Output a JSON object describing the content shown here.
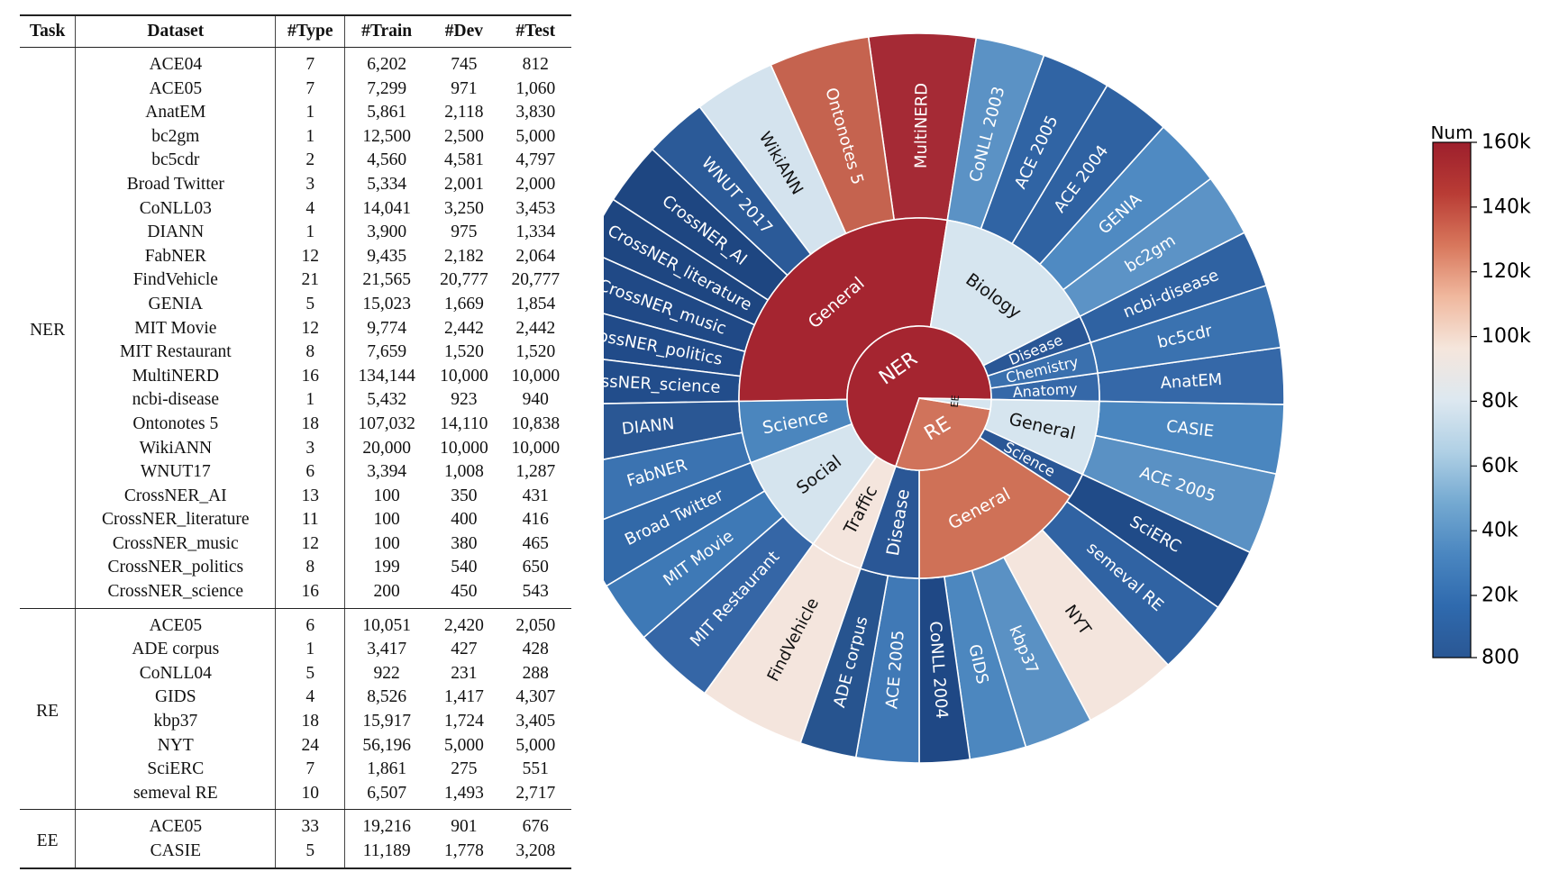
{
  "table": {
    "headers": [
      "Task",
      "Dataset",
      "#Type",
      "#Train",
      "#Dev",
      "#Test"
    ],
    "groups": [
      {
        "task": "NER",
        "rows": [
          [
            "ACE04",
            "7",
            "6,202",
            "745",
            "812"
          ],
          [
            "ACE05",
            "7",
            "7,299",
            "971",
            "1,060"
          ],
          [
            "AnatEM",
            "1",
            "5,861",
            "2,118",
            "3,830"
          ],
          [
            "bc2gm",
            "1",
            "12,500",
            "2,500",
            "5,000"
          ],
          [
            "bc5cdr",
            "2",
            "4,560",
            "4,581",
            "4,797"
          ],
          [
            "Broad Twitter",
            "3",
            "5,334",
            "2,001",
            "2,000"
          ],
          [
            "CoNLL03",
            "4",
            "14,041",
            "3,250",
            "3,453"
          ],
          [
            "DIANN",
            "1",
            "3,900",
            "975",
            "1,334"
          ],
          [
            "FabNER",
            "12",
            "9,435",
            "2,182",
            "2,064"
          ],
          [
            "FindVehicle",
            "21",
            "21,565",
            "20,777",
            "20,777"
          ],
          [
            "GENIA",
            "5",
            "15,023",
            "1,669",
            "1,854"
          ],
          [
            "MIT Movie",
            "12",
            "9,774",
            "2,442",
            "2,442"
          ],
          [
            "MIT Restaurant",
            "8",
            "7,659",
            "1,520",
            "1,520"
          ],
          [
            "MultiNERD",
            "16",
            "134,144",
            "10,000",
            "10,000"
          ],
          [
            "ncbi-disease",
            "1",
            "5,432",
            "923",
            "940"
          ],
          [
            "Ontonotes 5",
            "18",
            "107,032",
            "14,110",
            "10,838"
          ],
          [
            "WikiANN",
            "3",
            "20,000",
            "10,000",
            "10,000"
          ],
          [
            "WNUT17",
            "6",
            "3,394",
            "1,008",
            "1,287"
          ],
          [
            "CrossNER_AI",
            "13",
            "100",
            "350",
            "431"
          ],
          [
            "CrossNER_literature",
            "11",
            "100",
            "400",
            "416"
          ],
          [
            "CrossNER_music",
            "12",
            "100",
            "380",
            "465"
          ],
          [
            "CrossNER_politics",
            "8",
            "199",
            "540",
            "650"
          ],
          [
            "CrossNER_science",
            "16",
            "200",
            "450",
            "543"
          ]
        ]
      },
      {
        "task": "RE",
        "rows": [
          [
            "ACE05",
            "6",
            "10,051",
            "2,420",
            "2,050"
          ],
          [
            "ADE corpus",
            "1",
            "3,417",
            "427",
            "428"
          ],
          [
            "CoNLL04",
            "5",
            "922",
            "231",
            "288"
          ],
          [
            "GIDS",
            "4",
            "8,526",
            "1,417",
            "4,307"
          ],
          [
            "kbp37",
            "18",
            "15,917",
            "1,724",
            "3,405"
          ],
          [
            "NYT",
            "24",
            "56,196",
            "5,000",
            "5,000"
          ],
          [
            "SciERC",
            "7",
            "1,861",
            "275",
            "551"
          ],
          [
            "semeval RE",
            "10",
            "6,507",
            "1,493",
            "2,717"
          ]
        ]
      },
      {
        "task": "EE",
        "rows": [
          [
            "ACE05",
            "33",
            "19,216",
            "901",
            "676"
          ],
          [
            "CASIE",
            "5",
            "11,189",
            "1,778",
            "3,208"
          ]
        ]
      }
    ]
  },
  "chart_data": {
    "type": "sunburst",
    "colorbar": {
      "title": "Num",
      "min": 800,
      "max": 160000,
      "tick_labels": [
        "160k",
        "140k",
        "120k",
        "100k",
        "80k",
        "60k",
        "40k",
        "20k",
        "800"
      ],
      "tick_values": [
        160000,
        140000,
        120000,
        100000,
        80000,
        60000,
        40000,
        20000,
        800
      ],
      "colors": [
        "#2a5794",
        "#2f6aae",
        "#4a86c0",
        "#74a9d1",
        "#b0d0e5",
        "#dde8f0",
        "#f5e6dc",
        "#f0b89e",
        "#d8775c",
        "#b93c35",
        "#9d1f2c"
      ]
    },
    "root": [
      {
        "name": "NER",
        "value": 400,
        "color": "#a52530",
        "children": [
          {
            "name": "General",
            "color": "#a52530",
            "children": [
              {
                "name": "MultiNERD",
                "color": "#a52a35"
              },
              {
                "name": "Ontonotes 5",
                "color": "#c5634f"
              },
              {
                "name": "WikiANN",
                "color": "#d4e3ee"
              },
              {
                "name": "WNUT 2017",
                "color": "#2b5a98"
              },
              {
                "name": "CrossNER_AI",
                "color": "#1e4681"
              },
              {
                "name": "CrossNER_literature",
                "color": "#1e4681"
              },
              {
                "name": "CrossNER_music",
                "color": "#204986"
              },
              {
                "name": "CrossNER_politics",
                "color": "#214b89"
              },
              {
                "name": "CrossNER_science",
                "color": "#224d8b"
              }
            ]
          },
          {
            "name": "Science",
            "color": "#4b86be",
            "children": [
              {
                "name": "DIANN",
                "color": "#2a5794"
              },
              {
                "name": "FabNER",
                "color": "#3b73b1"
              }
            ]
          },
          {
            "name": "Social",
            "color": "#d5e4ee",
            "children": [
              {
                "name": "Broad Twitter",
                "color": "#3269a8"
              },
              {
                "name": "MIT Movie",
                "color": "#3e79b6"
              },
              {
                "name": "MIT Restaurant",
                "color": "#3566a6"
              }
            ]
          },
          {
            "name": "Traffic",
            "color": "#f4e5dd",
            "children": [
              {
                "name": "FindVehicle",
                "color": "#f4e5dd"
              }
            ]
          },
          {
            "name": "Anatomy",
            "color": "#3568a8",
            "children": [
              {
                "name": "AnatEM",
                "color": "#3568a8"
              }
            ]
          },
          {
            "name": "Chemistry",
            "color": "#3a70ae",
            "children": [
              {
                "name": "bc5cdr",
                "color": "#3a72b0"
              }
            ]
          },
          {
            "name": "Disease",
            "color": "#2a5796",
            "children": [
              {
                "name": "ncbi-disease",
                "color": "#2f62a2"
              }
            ]
          },
          {
            "name": "Biology",
            "color": "#d6e5ef",
            "children": [
              {
                "name": "bc2gm",
                "color": "#5c93c6"
              },
              {
                "name": "GENIA",
                "color": "#4f8ac2"
              },
              {
                "name": "ACE 2004",
                "color": "#2f62a2"
              },
              {
                "name": "ACE 2005",
                "color": "#3064a4"
              },
              {
                "name": "CoNLL 2003",
                "color": "#5b92c5"
              }
            ]
          }
        ]
      },
      {
        "name": "RE",
        "color": "#d0735b",
        "children": [
          {
            "name": "Science",
            "color": "#2a5796",
            "children": [
              {
                "name": "SciERC",
                "color": "#204b88"
              },
              {
                "name": "semeval RE",
                "color": "#3063a3"
              }
            ]
          },
          {
            "name": "General",
            "color": "#cf7157",
            "children": [
              {
                "name": "NYT",
                "color": "#f4e5dd"
              },
              {
                "name": "kbp37",
                "color": "#5a91c4"
              },
              {
                "name": "GIDS",
                "color": "#4c87bf"
              },
              {
                "name": "CoNLL 2004",
                "color": "#1f4885"
              },
              {
                "name": "ACE 2005",
                "color": "#4079b6"
              }
            ]
          },
          {
            "name": "Disease",
            "color": "#2a5796",
            "children": [
              {
                "name": "ADE corpus",
                "color": "#27548f"
              }
            ]
          }
        ]
      },
      {
        "name": "EE",
        "color": "#d6e5ef",
        "children": [
          {
            "name": "General",
            "color": "#d6e5ef",
            "children": [
              {
                "name": "CASIE",
                "color": "#4a86bf"
              },
              {
                "name": "ACE 2005",
                "color": "#5a91c4"
              }
            ]
          }
        ]
      }
    ]
  }
}
